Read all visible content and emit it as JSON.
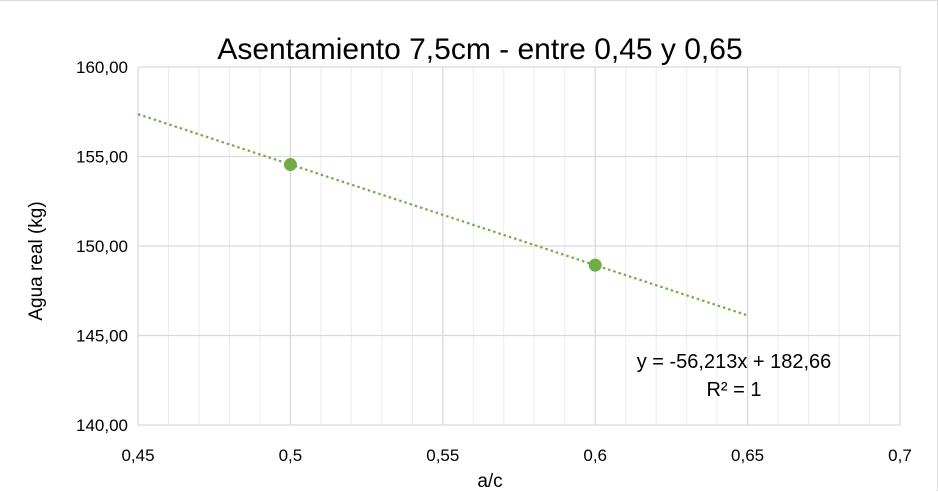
{
  "chart_data": {
    "type": "scatter",
    "title": "Asentamiento 7,5cm - entre 0,45 y 0,65",
    "xlabel": "a/c",
    "ylabel": "Agua real (kg)",
    "xlim": [
      0.45,
      0.7
    ],
    "ylim": [
      140,
      160
    ],
    "x_ticks": [
      "0,45",
      "0,5",
      "0,55",
      "0,6",
      "0,65",
      "0,7"
    ],
    "y_ticks": [
      "140,00",
      "145,00",
      "150,00",
      "155,00",
      "160,00"
    ],
    "grid": true,
    "points": [
      {
        "x": 0.5,
        "y": 154.55
      },
      {
        "x": 0.6,
        "y": 148.93
      }
    ],
    "trendline": {
      "type": "linear",
      "slope": -56.213,
      "intercept": 182.66,
      "x_range": [
        0.45,
        0.65
      ],
      "equation": "y = -56,213x + 182,66",
      "r_squared": "R² = 1"
    },
    "colors": {
      "points": "#70ad47",
      "trendline": "#70ad47",
      "grid_major": "#d9d9d9",
      "grid_minor": "#ececec"
    }
  }
}
